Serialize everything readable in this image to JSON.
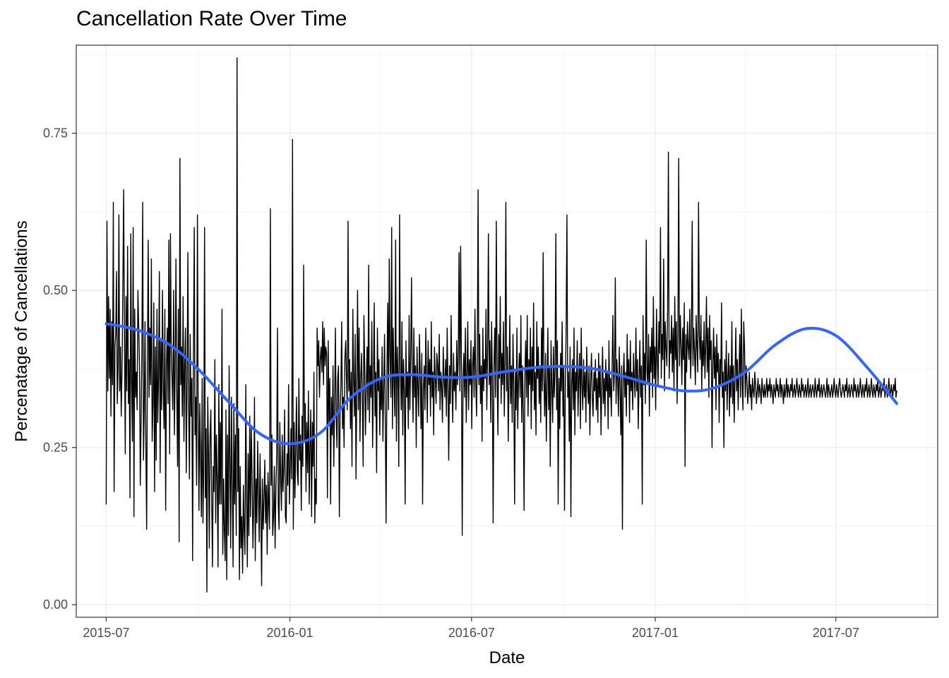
{
  "chart_data": {
    "type": "line",
    "title": "Cancellation Rate Over Time",
    "xlabel": "Date",
    "ylabel": "Percenatage of Cancellations",
    "x_axis": {
      "type": "date",
      "range": [
        "2015-06-01",
        "2017-10-11"
      ],
      "ticks": [
        "2015-07-01",
        "2016-01-01",
        "2016-07-01",
        "2017-01-01",
        "2017-07-01"
      ],
      "tick_labels": [
        "2015-07",
        "2016-01",
        "2016-07",
        "2017-01",
        "2017-07"
      ]
    },
    "y_axis": {
      "range": [
        -0.02,
        0.89
      ],
      "ticks": [
        0.0,
        0.25,
        0.5,
        0.75
      ],
      "tick_labels": [
        "0.00",
        "0.25",
        "0.50",
        "0.75"
      ]
    },
    "grid": true,
    "date_start": "2015-07-01",
    "date_end": "2017-08-31",
    "series": [
      {
        "kind": "daily",
        "color": "#000000",
        "values": [
          0.16,
          0.61,
          0.34,
          0.49,
          0.36,
          0.47,
          0.3,
          0.45,
          0.35,
          0.64,
          0.18,
          0.41,
          0.43,
          0.53,
          0.32,
          0.38,
          0.62,
          0.34,
          0.41,
          0.3,
          0.38,
          0.51,
          0.66,
          0.44,
          0.24,
          0.49,
          0.34,
          0.57,
          0.32,
          0.39,
          0.17,
          0.59,
          0.36,
          0.26,
          0.6,
          0.14,
          0.47,
          0.33,
          0.37,
          0.31,
          0.5,
          0.44,
          0.38,
          0.19,
          0.29,
          0.4,
          0.64,
          0.23,
          0.31,
          0.45,
          0.25,
          0.12,
          0.39,
          0.58,
          0.33,
          0.44,
          0.35,
          0.55,
          0.26,
          0.32,
          0.48,
          0.18,
          0.41,
          0.23,
          0.47,
          0.29,
          0.36,
          0.53,
          0.21,
          0.42,
          0.31,
          0.5,
          0.34,
          0.28,
          0.47,
          0.15,
          0.38,
          0.44,
          0.32,
          0.58,
          0.24,
          0.59,
          0.41,
          0.36,
          0.31,
          0.5,
          0.27,
          0.38,
          0.55,
          0.33,
          0.22,
          0.47,
          0.1,
          0.71,
          0.35,
          0.41,
          0.3,
          0.49,
          0.26,
          0.38,
          0.44,
          0.21,
          0.36,
          0.56,
          0.32,
          0.2,
          0.43,
          0.3,
          0.36,
          0.07,
          0.39,
          0.6,
          0.27,
          0.33,
          0.19,
          0.62,
          0.29,
          0.15,
          0.32,
          0.24,
          0.14,
          0.36,
          0.13,
          0.21,
          0.6,
          0.17,
          0.28,
          0.02,
          0.33,
          0.24,
          0.09,
          0.27,
          0.31,
          0.17,
          0.06,
          0.22,
          0.18,
          0.39,
          0.13,
          0.27,
          0.2,
          0.06,
          0.35,
          0.16,
          0.29,
          0.16,
          0.47,
          0.08,
          0.2,
          0.12,
          0.07,
          0.31,
          0.04,
          0.27,
          0.11,
          0.38,
          0.22,
          0.09,
          0.33,
          0.19,
          0.06,
          0.32,
          0.16,
          0.27,
          0.11,
          0.87,
          0.18,
          0.28,
          0.04,
          0.22,
          0.09,
          0.14,
          0.05,
          0.19,
          0.12,
          0.08,
          0.35,
          0.17,
          0.06,
          0.24,
          0.11,
          0.3,
          0.14,
          0.28,
          0.21,
          0.09,
          0.16,
          0.33,
          0.07,
          0.2,
          0.13,
          0.26,
          0.18,
          0.1,
          0.24,
          0.15,
          0.03,
          0.2,
          0.12,
          0.17,
          0.23,
          0.13,
          0.19,
          0.08,
          0.21,
          0.16,
          0.12,
          0.63,
          0.19,
          0.27,
          0.11,
          0.14,
          0.22,
          0.09,
          0.18,
          0.24,
          0.44,
          0.16,
          0.12,
          0.29,
          0.2,
          0.15,
          0.27,
          0.18,
          0.22,
          0.31,
          0.14,
          0.13,
          0.24,
          0.19,
          0.35,
          0.16,
          0.21,
          0.28,
          0.2,
          0.74,
          0.12,
          0.29,
          0.17,
          0.25,
          0.33,
          0.21,
          0.19,
          0.36,
          0.23,
          0.27,
          0.15,
          0.3,
          0.22,
          0.54,
          0.26,
          0.32,
          0.18,
          0.29,
          0.21,
          0.34,
          0.16,
          0.25,
          0.31,
          0.14,
          0.29,
          0.22,
          0.37,
          0.13,
          0.2,
          0.16,
          0.44,
          0.38,
          0.42,
          0.33,
          0.39,
          0.41,
          0.37,
          0.45,
          0.35,
          0.44,
          0.38,
          0.41,
          0.4,
          0.17,
          0.42,
          0.29,
          0.36,
          0.16,
          0.33,
          0.27,
          0.38,
          0.22,
          0.31,
          0.44,
          0.3,
          0.25,
          0.36,
          0.38,
          0.14,
          0.31,
          0.35,
          0.45,
          0.28,
          0.33,
          0.25,
          0.39,
          0.42,
          0.36,
          0.31,
          0.61,
          0.34,
          0.39,
          0.28,
          0.37,
          0.22,
          0.47,
          0.36,
          0.3,
          0.43,
          0.2,
          0.35,
          0.5,
          0.31,
          0.44,
          0.26,
          0.36,
          0.4,
          0.33,
          0.22,
          0.46,
          0.38,
          0.27,
          0.35,
          0.41,
          0.31,
          0.54,
          0.29,
          0.38,
          0.33,
          0.45,
          0.25,
          0.36,
          0.48,
          0.3,
          0.37,
          0.21,
          0.44,
          0.34,
          0.39,
          0.27,
          0.36,
          0.31,
          0.41,
          0.26,
          0.35,
          0.43,
          0.29,
          0.13,
          0.37,
          0.48,
          0.31,
          0.55,
          0.4,
          0.33,
          0.6,
          0.28,
          0.44,
          0.35,
          0.3,
          0.58,
          0.26,
          0.41,
          0.36,
          0.22,
          0.62,
          0.38,
          0.31,
          0.45,
          0.27,
          0.39,
          0.34,
          0.16,
          0.42,
          0.33,
          0.37,
          0.28,
          0.46,
          0.31,
          0.39,
          0.52,
          0.36,
          0.29,
          0.44,
          0.33,
          0.38,
          0.25,
          0.41,
          0.35,
          0.3,
          0.43,
          0.37,
          0.28,
          0.4,
          0.16,
          0.34,
          0.38,
          0.31,
          0.44,
          0.36,
          0.29,
          0.42,
          0.35,
          0.39,
          0.3,
          0.45,
          0.33,
          0.37,
          0.27,
          0.41,
          0.36,
          0.32,
          0.4,
          0.38,
          0.34,
          0.43,
          0.31,
          0.37,
          0.35,
          0.29,
          0.41,
          0.36,
          0.33,
          0.39,
          0.3,
          0.44,
          0.35,
          0.23,
          0.38,
          0.32,
          0.46,
          0.36,
          0.29,
          0.4,
          0.34,
          0.37,
          0.31,
          0.42,
          0.35,
          0.39,
          0.56,
          0.34,
          0.57,
          0.38,
          0.11,
          0.36,
          0.4,
          0.33,
          0.44,
          0.29,
          0.37,
          0.45,
          0.31,
          0.39,
          0.35,
          0.42,
          0.28,
          0.38,
          0.41,
          0.33,
          0.47,
          0.36,
          0.3,
          0.4,
          0.66,
          0.35,
          0.43,
          0.32,
          0.38,
          0.26,
          0.44,
          0.34,
          0.39,
          0.36,
          0.47,
          0.31,
          0.41,
          0.59,
          0.35,
          0.42,
          0.29,
          0.45,
          0.36,
          0.13,
          0.38,
          0.44,
          0.33,
          0.61,
          0.37,
          0.27,
          0.43,
          0.36,
          0.49,
          0.32,
          0.4,
          0.35,
          0.45,
          0.3,
          0.39,
          0.64,
          0.34,
          0.41,
          0.26,
          0.36,
          0.46,
          0.32,
          0.38,
          0.29,
          0.43,
          0.35,
          0.16,
          0.37,
          0.31,
          0.44,
          0.28,
          0.36,
          0.4,
          0.33,
          0.46,
          0.29,
          0.38,
          0.31,
          0.15,
          0.37,
          0.42,
          0.33,
          0.46,
          0.3,
          0.39,
          0.35,
          0.44,
          0.28,
          0.41,
          0.34,
          0.48,
          0.31,
          0.37,
          0.27,
          0.45,
          0.36,
          0.41,
          0.32,
          0.38,
          0.29,
          0.44,
          0.34,
          0.56,
          0.36,
          0.3,
          0.4,
          0.26,
          0.35,
          0.44,
          0.31,
          0.38,
          0.22,
          0.42,
          0.35,
          0.29,
          0.41,
          0.33,
          0.37,
          0.59,
          0.31,
          0.42,
          0.16,
          0.36,
          0.28,
          0.4,
          0.34,
          0.45,
          0.3,
          0.38,
          0.15,
          0.35,
          0.43,
          0.62,
          0.33,
          0.37,
          0.26,
          0.41,
          0.14,
          0.35,
          0.39,
          0.31,
          0.44,
          0.27,
          0.37,
          0.34,
          0.42,
          0.3,
          0.36,
          0.4,
          0.28,
          0.44,
          0.35,
          0.31,
          0.39,
          0.33,
          0.37,
          0.29,
          0.41,
          0.35,
          0.32,
          0.38,
          0.27,
          0.36,
          0.4,
          0.33,
          0.3,
          0.37,
          0.34,
          0.39,
          0.31,
          0.36,
          0.29,
          0.4,
          0.33,
          0.38,
          0.27,
          0.35,
          0.41,
          0.32,
          0.36,
          0.3,
          0.39,
          0.34,
          0.37,
          0.28,
          0.42,
          0.33,
          0.36,
          0.3,
          0.38,
          0.46,
          0.34,
          0.37,
          0.52,
          0.32,
          0.39,
          0.36,
          0.3,
          0.41,
          0.35,
          0.27,
          0.38,
          0.12,
          0.36,
          0.4,
          0.33,
          0.37,
          0.3,
          0.43,
          0.35,
          0.39,
          0.29,
          0.42,
          0.34,
          0.37,
          0.31,
          0.4,
          0.36,
          0.33,
          0.44,
          0.34,
          0.39,
          0.28,
          0.36,
          0.42,
          0.33,
          0.38,
          0.16,
          0.46,
          0.35,
          0.4,
          0.32,
          0.58,
          0.37,
          0.35,
          0.43,
          0.3,
          0.41,
          0.37,
          0.44,
          0.33,
          0.49,
          0.36,
          0.41,
          0.31,
          0.47,
          0.39,
          0.35,
          0.45,
          0.4,
          0.6,
          0.36,
          0.43,
          0.39,
          0.55,
          0.34,
          0.45,
          0.41,
          0.38,
          0.47,
          0.72,
          0.36,
          0.42,
          0.4,
          0.46,
          0.37,
          0.44,
          0.34,
          0.49,
          0.39,
          0.45,
          0.32,
          0.43,
          0.71,
          0.38,
          0.46,
          0.41,
          0.35,
          0.44,
          0.39,
          0.48,
          0.22,
          0.43,
          0.37,
          0.45,
          0.41,
          0.39,
          0.47,
          0.36,
          0.42,
          0.61,
          0.38,
          0.44,
          0.4,
          0.35,
          0.46,
          0.41,
          0.37,
          0.64,
          0.43,
          0.39,
          0.46,
          0.34,
          0.42,
          0.38,
          0.45,
          0.36,
          0.41,
          0.49,
          0.37,
          0.44,
          0.33,
          0.46,
          0.39,
          0.42,
          0.25,
          0.38,
          0.44,
          0.36,
          0.41,
          0.31,
          0.43,
          0.37,
          0.4,
          0.29,
          0.39,
          0.35,
          0.48,
          0.33,
          0.37,
          0.25,
          0.39,
          0.34,
          0.42,
          0.31,
          0.36,
          0.4,
          0.3,
          0.38,
          0.33,
          0.45,
          0.32,
          0.38,
          0.29,
          0.36,
          0.44,
          0.34,
          0.39,
          0.31,
          0.37,
          0.43,
          0.33,
          0.47,
          0.35,
          0.31,
          0.45,
          0.41,
          0.33,
          0.38,
          0.36,
          0.32,
          0.34,
          0.37,
          0.33,
          0.35,
          0.31,
          0.36,
          0.34,
          0.33,
          0.37,
          0.35,
          0.32,
          0.34,
          0.36,
          0.33,
          0.35,
          0.34,
          0.32,
          0.36,
          0.34,
          0.33,
          0.35,
          0.33,
          0.34,
          0.36,
          0.33,
          0.35,
          0.34,
          0.36,
          0.33,
          0.35,
          0.34,
          0.32,
          0.35,
          0.34,
          0.33,
          0.36,
          0.34,
          0.35,
          0.33,
          0.34,
          0.36,
          0.33,
          0.35,
          0.34,
          0.32,
          0.35,
          0.33,
          0.34,
          0.36,
          0.33,
          0.35,
          0.34,
          0.33,
          0.35,
          0.34,
          0.36,
          0.33,
          0.34,
          0.35,
          0.33,
          0.34,
          0.36,
          0.34,
          0.33,
          0.35,
          0.34,
          0.33,
          0.36,
          0.34,
          0.35,
          0.33,
          0.34,
          0.35,
          0.33,
          0.34,
          0.36,
          0.33,
          0.34,
          0.35,
          0.33,
          0.34,
          0.35,
          0.34,
          0.33,
          0.36,
          0.34,
          0.33,
          0.35,
          0.34,
          0.36,
          0.33,
          0.34,
          0.35,
          0.33,
          0.34,
          0.35,
          0.34,
          0.33,
          0.34,
          0.36,
          0.33,
          0.35,
          0.34,
          0.33,
          0.34,
          0.35,
          0.33,
          0.34,
          0.36,
          0.34,
          0.33,
          0.35,
          0.34,
          0.33,
          0.35,
          0.36,
          0.34,
          0.33,
          0.34,
          0.35,
          0.34,
          0.33,
          0.35,
          0.34,
          0.36,
          0.33,
          0.34,
          0.35,
          0.33,
          0.34,
          0.35,
          0.34,
          0.33,
          0.36,
          0.34,
          0.35,
          0.33,
          0.34,
          0.35,
          0.33,
          0.34,
          0.36,
          0.34,
          0.33,
          0.35,
          0.34,
          0.33,
          0.35,
          0.34,
          0.36,
          0.33,
          0.34,
          0.35,
          0.33,
          0.34,
          0.36,
          0.34,
          0.33,
          0.35,
          0.34,
          0.33,
          0.35,
          0.34,
          0.36,
          0.33,
          0.34,
          0.35,
          0.33,
          0.34,
          0.35,
          0.34,
          0.36,
          0.33,
          0.34,
          0.35,
          0.33,
          0.34,
          0.36,
          0.34,
          0.33,
          0.35,
          0.34,
          0.33,
          0.35,
          0.34,
          0.36,
          0.33,
          0.34
        ]
      },
      {
        "kind": "smooth",
        "color": "#3366FF",
        "points": [
          [
            "2015-07-01",
            0.447
          ],
          [
            "2015-08-01",
            0.437
          ],
          [
            "2015-09-01",
            0.415
          ],
          [
            "2015-10-01",
            0.375
          ],
          [
            "2015-11-01",
            0.322
          ],
          [
            "2015-12-01",
            0.273
          ],
          [
            "2016-01-01",
            0.256
          ],
          [
            "2016-02-01",
            0.274
          ],
          [
            "2016-03-01",
            0.328
          ],
          [
            "2016-04-01",
            0.36
          ],
          [
            "2016-05-01",
            0.366
          ],
          [
            "2016-06-01",
            0.362
          ],
          [
            "2016-07-01",
            0.362
          ],
          [
            "2016-08-01",
            0.37
          ],
          [
            "2016-09-01",
            0.377
          ],
          [
            "2016-10-01",
            0.379
          ],
          [
            "2016-11-01",
            0.375
          ],
          [
            "2016-12-01",
            0.363
          ],
          [
            "2017-01-01",
            0.349
          ],
          [
            "2017-02-01",
            0.34
          ],
          [
            "2017-03-01",
            0.345
          ],
          [
            "2017-04-01",
            0.37
          ],
          [
            "2017-05-01",
            0.413
          ],
          [
            "2017-06-01",
            0.439
          ],
          [
            "2017-07-01",
            0.428
          ],
          [
            "2017-08-01",
            0.378
          ],
          [
            "2017-08-31",
            0.32
          ]
        ]
      }
    ]
  }
}
